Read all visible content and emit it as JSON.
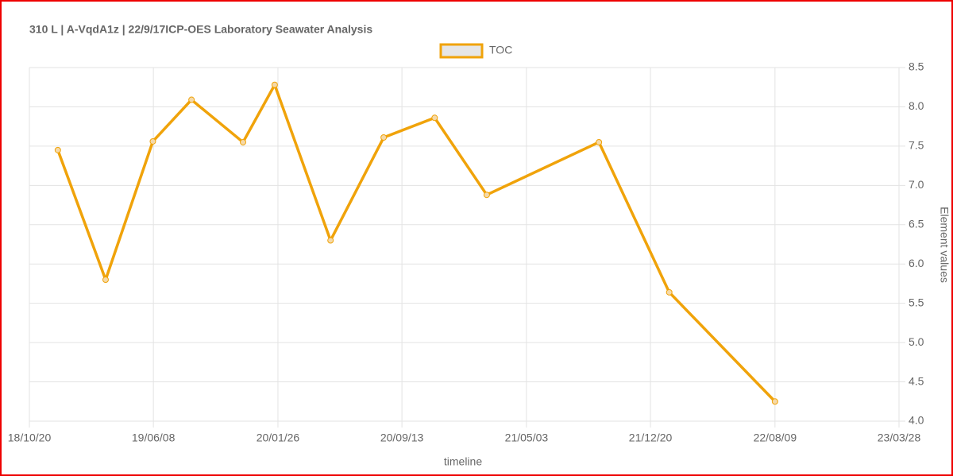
{
  "chart_data": {
    "type": "line",
    "title": "310 L | A-VqdA1z | 22/9/17ICP-OES Laboratory Seawater Analysis",
    "x_label": "timeline",
    "y_label": "Element values",
    "x": [
      "2018-12-12",
      "2019-03-11",
      "2019-06-07",
      "2019-08-18",
      "2019-11-22",
      "2020-01-20",
      "2020-05-03",
      "2020-08-10",
      "2020-11-13",
      "2021-02-18",
      "2021-09-15",
      "2022-01-24",
      "2022-08-09"
    ],
    "series": [
      {
        "name": "TOC",
        "color": "#f0a30a",
        "values": [
          7.45,
          5.8,
          7.56,
          8.09,
          7.55,
          8.28,
          6.3,
          7.61,
          7.86,
          6.88,
          7.55,
          5.64,
          4.25
        ]
      }
    ],
    "xlim": [
      "2018-10-20",
      "2023-03-28"
    ],
    "xticks": [
      {
        "value": "2018-10-20",
        "label": "18/10/20"
      },
      {
        "value": "2019-06-08",
        "label": "19/06/08"
      },
      {
        "value": "2020-01-26",
        "label": "20/01/26"
      },
      {
        "value": "2020-09-13",
        "label": "20/09/13"
      },
      {
        "value": "2021-05-03",
        "label": "21/05/03"
      },
      {
        "value": "2021-12-20",
        "label": "21/12/20"
      },
      {
        "value": "2022-08-09",
        "label": "22/08/09"
      },
      {
        "value": "2023-03-28",
        "label": "23/03/28"
      }
    ],
    "ylim": [
      4,
      8.5
    ],
    "yticks": [
      {
        "value": 4,
        "label": "4.0"
      },
      4.5,
      {
        "value": 5,
        "label": "5.0"
      },
      5.5,
      {
        "value": 6,
        "label": "6.0"
      },
      6.5,
      {
        "value": 7,
        "label": "7.0"
      },
      7.5,
      {
        "value": 8,
        "label": "8.0"
      },
      8.5
    ],
    "grid": true,
    "legend": "top"
  }
}
